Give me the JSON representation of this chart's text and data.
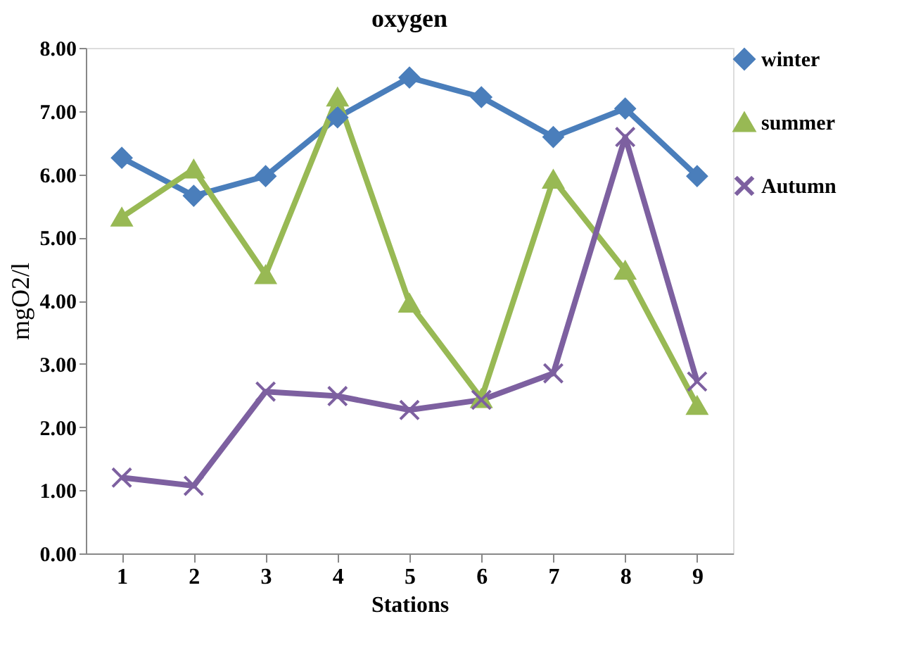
{
  "chart_data": {
    "type": "line",
    "title": "oxygen",
    "xlabel": "Stations",
    "ylabel": "mgO2/l",
    "categories": [
      "1",
      "2",
      "3",
      "4",
      "5",
      "6",
      "7",
      "8",
      "9"
    ],
    "series": [
      {
        "name": "winter",
        "color": "#4a7ebb",
        "marker": "diamond",
        "values": [
          6.26,
          5.66,
          5.97,
          6.9,
          7.53,
          7.22,
          6.59,
          7.04,
          5.97
        ]
      },
      {
        "name": "summer",
        "color": "#98b954",
        "marker": "triangle",
        "values": [
          5.32,
          6.08,
          4.41,
          7.22,
          3.96,
          2.45,
          5.92,
          4.48,
          2.34
        ]
      },
      {
        "name": "Autumn",
        "color": "#7d60a0",
        "marker": "cross",
        "values": [
          1.2,
          1.07,
          2.56,
          2.49,
          2.27,
          2.43,
          2.85,
          6.59,
          2.72
        ]
      }
    ],
    "ylim": [
      0,
      8
    ],
    "yticks": [
      {
        "value": 0,
        "label": "0.00"
      },
      {
        "value": 1,
        "label": "1.00"
      },
      {
        "value": 2,
        "label": "2.00"
      },
      {
        "value": 3,
        "label": "3.00"
      },
      {
        "value": 4,
        "label": "4.00"
      },
      {
        "value": 5,
        "label": "5.00"
      },
      {
        "value": 6,
        "label": "6.00"
      },
      {
        "value": 7,
        "label": "7.00"
      },
      {
        "value": 8,
        "label": "8.00"
      }
    ],
    "legend": "top right",
    "grid": false,
    "line_style": "solid"
  }
}
